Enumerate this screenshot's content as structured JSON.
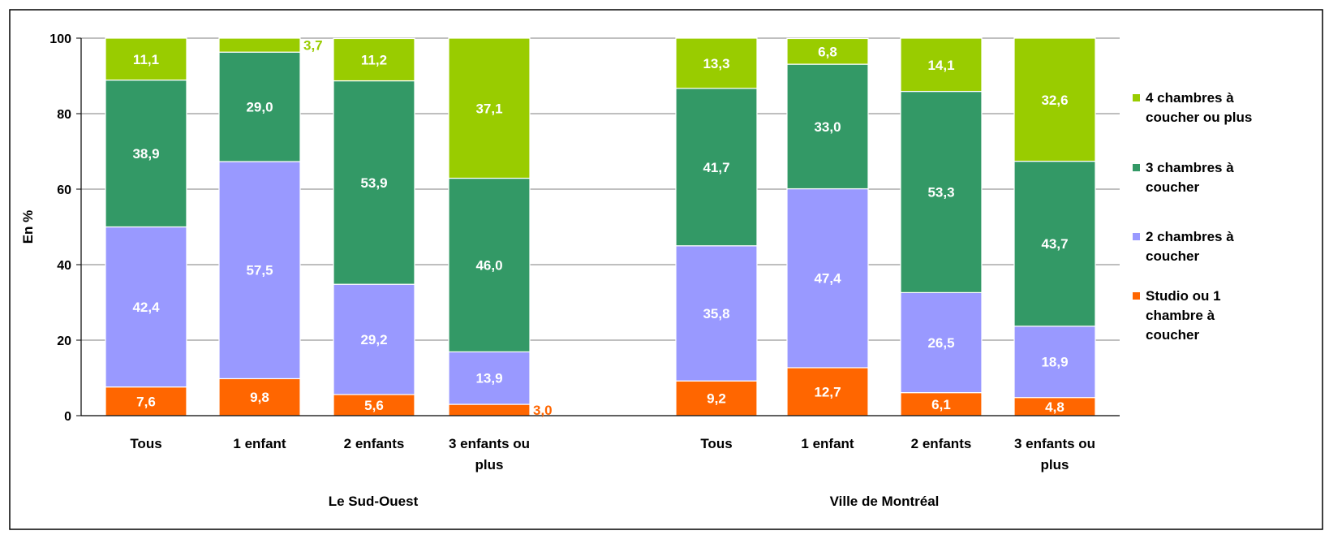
{
  "chart_data": {
    "type": "bar",
    "stacked": true,
    "ylabel": "En %",
    "ylim": [
      0,
      100
    ],
    "yticks": [
      "0",
      "20",
      "40",
      "60",
      "80",
      "100"
    ],
    "grid": true,
    "legend_position": "right",
    "groups": [
      {
        "label": "Le Sud-Ouest",
        "categories": [
          [
            "Tous"
          ],
          [
            "1 enfant"
          ],
          [
            "2 enfants"
          ],
          [
            "3 enfants ou",
            "plus"
          ]
        ]
      },
      {
        "label": "Ville de Montréal",
        "categories": [
          [
            "Tous"
          ],
          [
            "1 enfant"
          ],
          [
            "2 enfants"
          ],
          [
            "3 enfants ou",
            "plus"
          ]
        ]
      }
    ],
    "series": [
      {
        "name": [
          "Studio ou 1",
          "chambre à",
          "coucher"
        ],
        "color": "#ff6600",
        "values": [
          7.6,
          9.8,
          5.6,
          3.0,
          9.2,
          12.7,
          6.1,
          4.8
        ],
        "labels": [
          "7,6",
          "9,8",
          "5,6",
          "3,0",
          "9,2",
          "12,7",
          "6,1",
          "4,8"
        ]
      },
      {
        "name": [
          "2 chambres à",
          "coucher"
        ],
        "color": "#9999ff",
        "values": [
          42.4,
          57.5,
          29.2,
          13.9,
          35.8,
          47.4,
          26.5,
          18.9
        ],
        "labels": [
          "42,4",
          "57,5",
          "29,2",
          "13,9",
          "35,8",
          "47,4",
          "26,5",
          "18,9"
        ]
      },
      {
        "name": [
          "3 chambres à",
          "coucher"
        ],
        "color": "#339966",
        "values": [
          38.9,
          29.0,
          53.9,
          46.0,
          41.7,
          33.0,
          53.3,
          43.7
        ],
        "labels": [
          "38,9",
          "29,0",
          "53,9",
          "46,0",
          "41,7",
          "33,0",
          "53,3",
          "43,7"
        ]
      },
      {
        "name": [
          "4 chambres à",
          "coucher ou plus"
        ],
        "color": "#99cc00",
        "values": [
          11.1,
          3.7,
          11.2,
          37.1,
          13.3,
          6.8,
          14.1,
          32.6
        ],
        "labels": [
          "11,1",
          "3,7",
          "11,2",
          "37,1",
          "13,3",
          "6,8",
          "14,1",
          "32,6"
        ]
      }
    ]
  }
}
